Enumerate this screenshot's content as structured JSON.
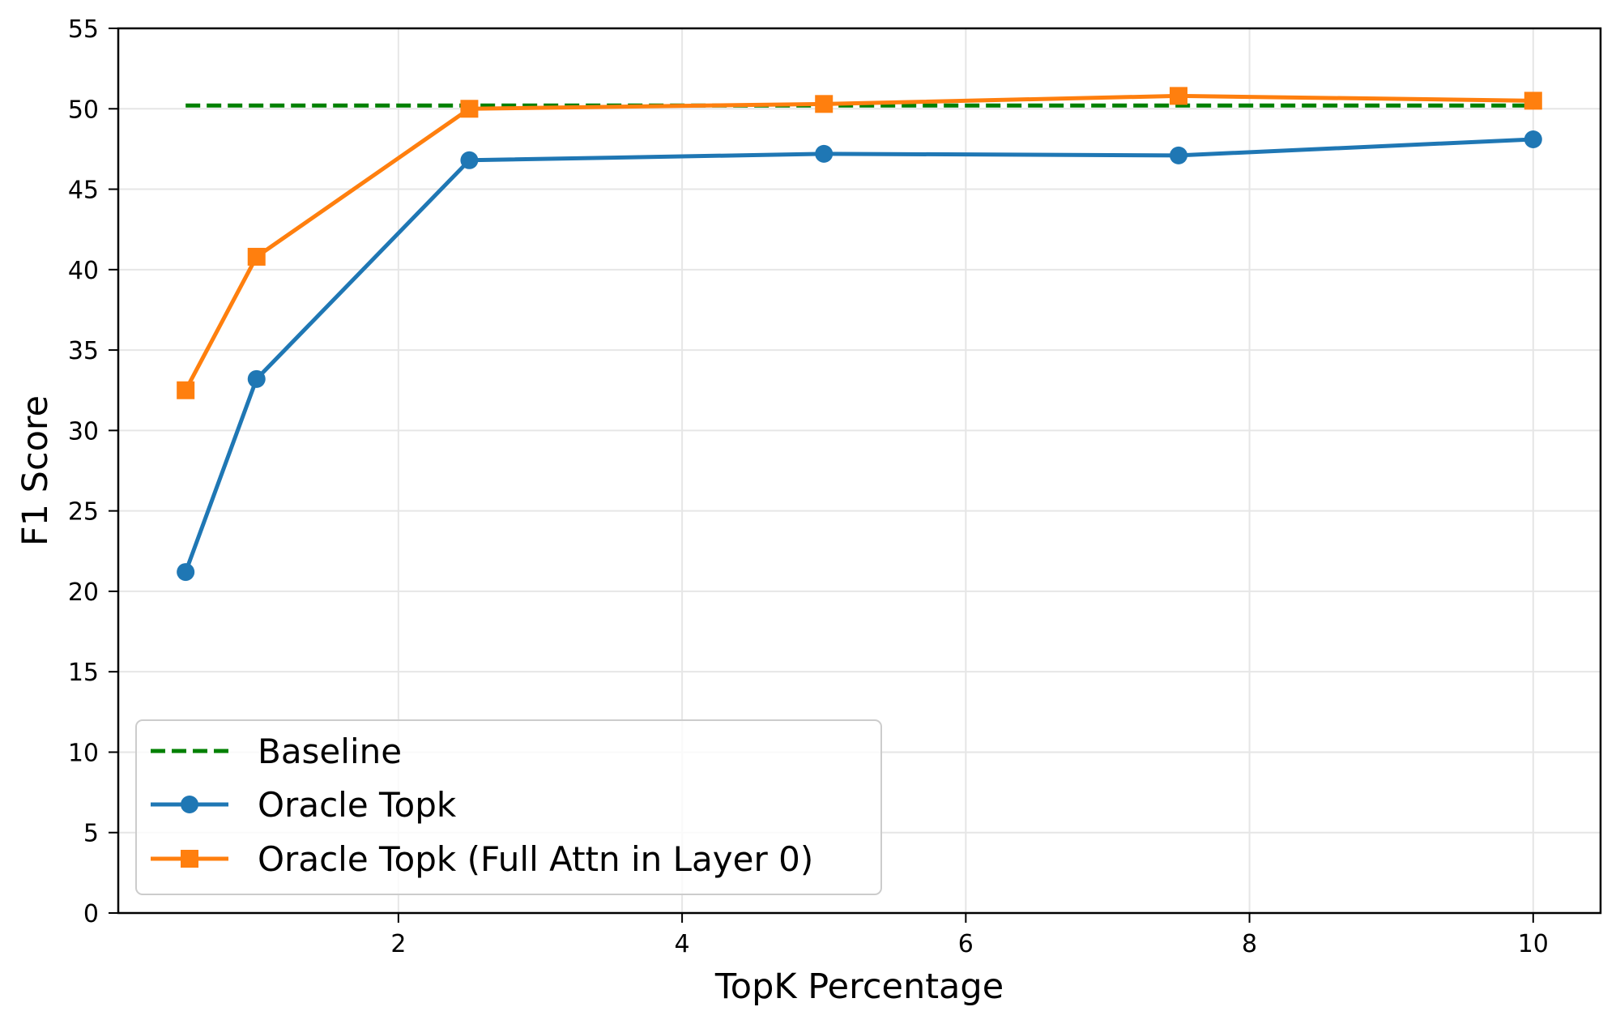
{
  "chart_data": {
    "type": "line",
    "title": "",
    "xlabel": "TopK Percentage",
    "ylabel": "F1 Score",
    "xlim": [
      0.025,
      10.475
    ],
    "ylim": [
      0,
      55
    ],
    "xticks": [
      2,
      4,
      6,
      8,
      10
    ],
    "yticks": [
      0,
      5,
      10,
      15,
      20,
      25,
      30,
      35,
      40,
      45,
      50,
      55
    ],
    "grid": true,
    "legend_position": "lower left",
    "x": [
      0.5,
      1,
      2.5,
      5,
      7.5,
      10
    ],
    "series": [
      {
        "name": "Baseline",
        "style": "dashed",
        "marker": "none",
        "color": "#008000",
        "x": [
          0.5,
          10
        ],
        "values": [
          50.2,
          50.2
        ]
      },
      {
        "name": "Oracle Topk",
        "style": "solid",
        "marker": "circle",
        "color": "#1f77b4",
        "x": [
          0.5,
          1,
          2.5,
          5,
          7.5,
          10
        ],
        "values": [
          21.2,
          33.2,
          46.8,
          47.2,
          47.1,
          48.1
        ]
      },
      {
        "name": "Oracle Topk (Full Attn in Layer 0)",
        "style": "solid",
        "marker": "square",
        "color": "#ff7f0e",
        "x": [
          0.5,
          1,
          2.5,
          5,
          7.5,
          10
        ],
        "values": [
          32.5,
          40.8,
          50.0,
          50.3,
          50.8,
          50.5
        ]
      }
    ]
  },
  "axes": {
    "xlabel": "TopK Percentage",
    "ylabel": "F1 Score"
  },
  "legend": {
    "items": [
      {
        "label": "Baseline"
      },
      {
        "label": "Oracle Topk"
      },
      {
        "label": "Oracle Topk (Full Attn in Layer 0)"
      }
    ]
  }
}
